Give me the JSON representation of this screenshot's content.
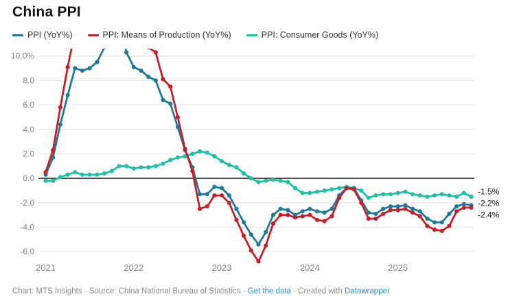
{
  "header": {
    "title": "China PPI"
  },
  "colors": {
    "ppi": "#1f7a9b",
    "means_of_production": "#c51f28",
    "consumer_goods": "#1ec0a6",
    "grid": "#e4e4e4",
    "zero_line": "#000000",
    "axis_text": "#858585",
    "end_label_text": "#1a1a1a",
    "footer_text": "#8a8a8a",
    "link": "#2e8bc9"
  },
  "chart_data": {
    "type": "line",
    "title": "China PPI",
    "frequency": "monthly",
    "x_start": "2021-01",
    "x_end": "2025-11",
    "points_per_series": 59,
    "x_tick_labels": [
      "2021",
      "2022",
      "2023",
      "2024",
      "2025"
    ],
    "x_tick_month_index": [
      0,
      12,
      24,
      36,
      48
    ],
    "ylim": [
      -7.0,
      10.6
    ],
    "y_ticks": [
      10,
      8,
      6,
      4,
      2,
      0,
      -2,
      -4,
      -6
    ],
    "y_tick_labels": [
      "10.0%",
      "8.0",
      "6.0",
      "4.0",
      "2.0",
      "0.0",
      "-2.0",
      "-4.0",
      "-6.0"
    ],
    "grid": true,
    "zero_line": true,
    "legend_position": "top",
    "markers": true,
    "series": [
      {
        "name": "PPI (YoY%)",
        "color": "#1f7a9b",
        "values": [
          0.3,
          1.7,
          4.4,
          6.8,
          9.0,
          8.8,
          9.0,
          9.5,
          10.7,
          13.5,
          12.9,
          10.3,
          9.1,
          8.8,
          8.3,
          8.0,
          6.4,
          6.1,
          4.2,
          2.3,
          0.9,
          -1.3,
          -1.3,
          -0.7,
          -0.8,
          -1.4,
          -2.5,
          -3.6,
          -4.6,
          -5.4,
          -4.4,
          -3.0,
          -2.5,
          -2.6,
          -3.0,
          -2.7,
          -2.5,
          -2.7,
          -2.8,
          -2.5,
          -1.4,
          -0.8,
          -0.8,
          -1.8,
          -2.8,
          -2.9,
          -2.5,
          -2.3,
          -2.3,
          -2.2,
          -2.5,
          -2.7,
          -3.3,
          -3.6,
          -3.6,
          -2.9,
          -2.3,
          -2.1,
          -2.2
        ]
      },
      {
        "name": "PPI: Means of Production (YoY%)",
        "color": "#c51f28",
        "values": [
          0.5,
          2.3,
          5.8,
          9.1,
          12.0,
          11.8,
          12.0,
          12.7,
          14.2,
          17.9,
          17.0,
          13.4,
          11.8,
          11.4,
          10.7,
          10.3,
          8.1,
          7.5,
          5.0,
          2.4,
          0.6,
          -2.5,
          -2.3,
          -1.4,
          -1.4,
          -2.0,
          -3.4,
          -4.7,
          -5.9,
          -6.8,
          -5.5,
          -3.7,
          -3.0,
          -3.0,
          -3.2,
          -3.1,
          -3.0,
          -3.4,
          -3.5,
          -3.1,
          -1.6,
          -0.8,
          -0.9,
          -2.0,
          -3.3,
          -3.3,
          -2.9,
          -2.6,
          -2.6,
          -2.5,
          -2.8,
          -3.1,
          -3.9,
          -4.2,
          -4.3,
          -3.9,
          -2.7,
          -2.4,
          -2.4
        ]
      },
      {
        "name": "PPI: Consumer Goods (YoY%)",
        "color": "#1ec0a6",
        "values": [
          -0.2,
          -0.2,
          0.1,
          0.3,
          0.5,
          0.3,
          0.3,
          0.3,
          0.4,
          0.6,
          1.0,
          1.0,
          0.8,
          0.9,
          0.9,
          1.0,
          1.2,
          1.5,
          1.7,
          1.8,
          2.0,
          2.2,
          2.1,
          1.8,
          1.4,
          1.1,
          0.9,
          0.4,
          0.0,
          -0.3,
          -0.2,
          -0.1,
          -0.2,
          -0.3,
          -0.8,
          -1.2,
          -1.2,
          -1.1,
          -1.0,
          -0.9,
          -0.8,
          -0.7,
          -0.8,
          -1.0,
          -1.6,
          -1.4,
          -1.3,
          -1.3,
          -1.2,
          -1.1,
          -1.3,
          -1.4,
          -1.5,
          -1.4,
          -1.3,
          -1.4,
          -1.5,
          -1.2,
          -1.5
        ]
      }
    ],
    "end_labels": [
      {
        "text": "-1.5%",
        "value": -1.5,
        "series": "PPI: Consumer Goods (YoY%)"
      },
      {
        "text": "-2.2%",
        "value": -2.2,
        "series": "PPI (YoY%)"
      },
      {
        "text": "-2.4%",
        "value": -2.4,
        "series": "PPI: Means of Production (YoY%)"
      }
    ]
  },
  "footer": {
    "separator": " · ",
    "segments": [
      {
        "name": "footer-chart-credit",
        "text": "Chart: MTS Insights"
      },
      {
        "name": "footer-source",
        "text": "Source: China National Bureau of Statistics"
      },
      {
        "name": "get-the-data-link",
        "text": "Get the data",
        "link": true
      },
      {
        "name": "datawrapper-link",
        "prefix": "Created with ",
        "text": "Datawrapper",
        "link": true
      }
    ]
  }
}
